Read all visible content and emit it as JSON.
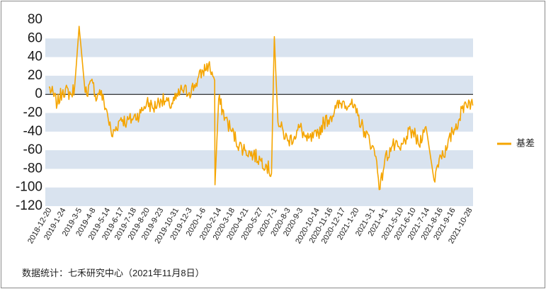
{
  "chart_data": {
    "type": "line",
    "title": "",
    "xlabel": "",
    "ylabel": "",
    "ylim": [
      -120,
      80
    ],
    "yticks": [
      80,
      60,
      40,
      20,
      0,
      -20,
      -40,
      -60,
      -80,
      -100,
      -120
    ],
    "grid": "alternating horizontal bands",
    "legend_position": "right",
    "colors": {
      "line": "#f5a500",
      "band": "#d9e3ef",
      "zero_line": "#000000"
    },
    "x_tick_labels": [
      "2018-12-20",
      "2019-1-24",
      "2019-3-5",
      "2019-4-8",
      "2019-5-14",
      "2019-6-17",
      "2019-7-18",
      "2019-8-20",
      "2019-9-23",
      "2019-10-31",
      "2019-12-3",
      "2020-1-6",
      "2020-2-14",
      "2020-3-18",
      "2020-4-21",
      "2020-5-27",
      "2020-7-1",
      "2020-8-3",
      "2020-9-3",
      "2020-10-14",
      "2020-11-16",
      "2020-12-17",
      "2021-1-20",
      "2021-3-1",
      "2021-4-1",
      "2021-5-10",
      "2021-6-10",
      "2021-7-14",
      "2021-8-16",
      "2021-9-16",
      "2021-10-28"
    ],
    "series": [
      {
        "name": "基差",
        "x": [
          "2018-12-20",
          "2019-1-10",
          "2019-1-24",
          "2019-2-14",
          "2019-2-22",
          "2019-3-5",
          "2019-3-20",
          "2019-4-8",
          "2019-4-18",
          "2019-4-25",
          "2019-5-14",
          "2019-5-25",
          "2019-6-17",
          "2019-7-1",
          "2019-7-18",
          "2019-8-5",
          "2019-8-20",
          "2019-9-5",
          "2019-9-23",
          "2019-10-15",
          "2019-10-31",
          "2019-11-15",
          "2019-12-3",
          "2019-12-20",
          "2020-1-6",
          "2020-1-20",
          "2020-2-4",
          "2020-2-5",
          "2020-2-14",
          "2020-3-1",
          "2020-3-18",
          "2020-4-5",
          "2020-4-21",
          "2020-5-10",
          "2020-5-27",
          "2020-6-10",
          "2020-6-24",
          "2020-7-1",
          "2020-7-10",
          "2020-8-3",
          "2020-8-20",
          "2020-9-3",
          "2020-9-20",
          "2020-10-14",
          "2020-11-1",
          "2020-11-16",
          "2020-12-1",
          "2020-12-17",
          "2021-1-5",
          "2021-1-20",
          "2021-2-10",
          "2021-3-1",
          "2021-3-12",
          "2021-3-20",
          "2021-4-1",
          "2021-4-20",
          "2021-5-10",
          "2021-5-25",
          "2021-6-10",
          "2021-6-25",
          "2021-7-5",
          "2021-7-14",
          "2021-8-1",
          "2021-8-16",
          "2021-9-1",
          "2021-9-16",
          "2021-10-1",
          "2021-10-15",
          "2021-10-28",
          "2021-11-5"
        ],
        "values": [
          8,
          -10,
          5,
          0,
          8,
          73,
          2,
          12,
          -5,
          5,
          -20,
          -45,
          -25,
          -30,
          -25,
          -20,
          -8,
          -15,
          -5,
          -12,
          -5,
          5,
          2,
          12,
          25,
          32,
          15,
          -97,
          -5,
          -25,
          -40,
          -55,
          -60,
          -65,
          -70,
          -75,
          -85,
          62,
          -30,
          -50,
          -45,
          -35,
          -50,
          -45,
          -30,
          -25,
          -15,
          -8,
          -10,
          -20,
          -40,
          -55,
          -72,
          -102,
          -70,
          -55,
          -60,
          -45,
          -40,
          -55,
          -38,
          -40,
          -92,
          -65,
          -60,
          -40,
          -28,
          -10,
          -8,
          -12
        ]
      }
    ]
  },
  "legend": {
    "label": "基差"
  },
  "source": "数据统计：七禾研究中心（2021年11月8日）"
}
